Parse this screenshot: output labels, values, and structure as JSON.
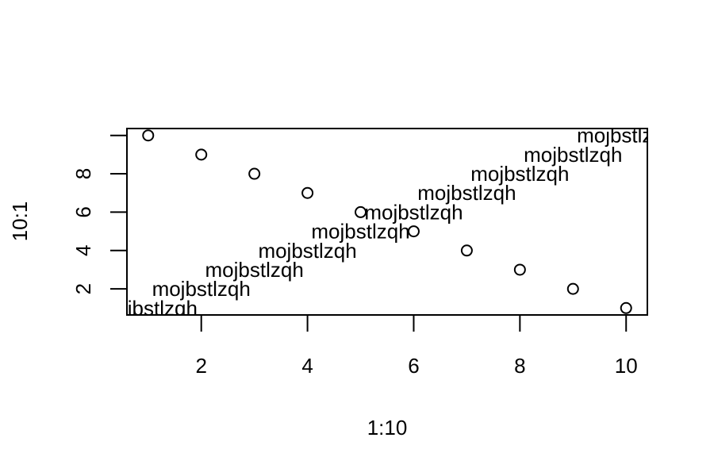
{
  "chart_data": {
    "type": "scatter",
    "title": "",
    "xlabel": "1:10",
    "ylabel": "10:1",
    "xlim": [
      0.6,
      10.4
    ],
    "ylim": [
      0.64,
      10.36
    ],
    "grid": false,
    "legend": "none",
    "x_ticks": [
      2,
      4,
      6,
      8,
      10
    ],
    "y_ticks": [
      2,
      4,
      6,
      8
    ],
    "points": [
      {
        "x": 1,
        "y": 10
      },
      {
        "x": 2,
        "y": 9
      },
      {
        "x": 3,
        "y": 8
      },
      {
        "x": 4,
        "y": 7
      },
      {
        "x": 5,
        "y": 6
      },
      {
        "x": 6,
        "y": 5
      },
      {
        "x": 7,
        "y": 4
      },
      {
        "x": 8,
        "y": 3
      },
      {
        "x": 9,
        "y": 2
      },
      {
        "x": 10,
        "y": 1
      }
    ],
    "text_labels": [
      {
        "x": 1,
        "y": 1,
        "text": "mojbstlzqh"
      },
      {
        "x": 2,
        "y": 2,
        "text": "mojbstlzqh"
      },
      {
        "x": 3,
        "y": 3,
        "text": "mojbstlzqh"
      },
      {
        "x": 4,
        "y": 4,
        "text": "mojbstlzqh"
      },
      {
        "x": 5,
        "y": 5,
        "text": "mojbstlzqh"
      },
      {
        "x": 6,
        "y": 6,
        "text": "mojbstlzqh"
      },
      {
        "x": 7,
        "y": 7,
        "text": "mojbstlzqh"
      },
      {
        "x": 8,
        "y": 8,
        "text": "mojbstlzqh"
      },
      {
        "x": 9,
        "y": 9,
        "text": "mojbstlzqh"
      },
      {
        "x": 10,
        "y": 10,
        "text": "mojbstlzqh"
      }
    ],
    "colors": {
      "points": "#000000",
      "axes": "#000000",
      "text": "#000000",
      "background": "#ffffff"
    }
  }
}
